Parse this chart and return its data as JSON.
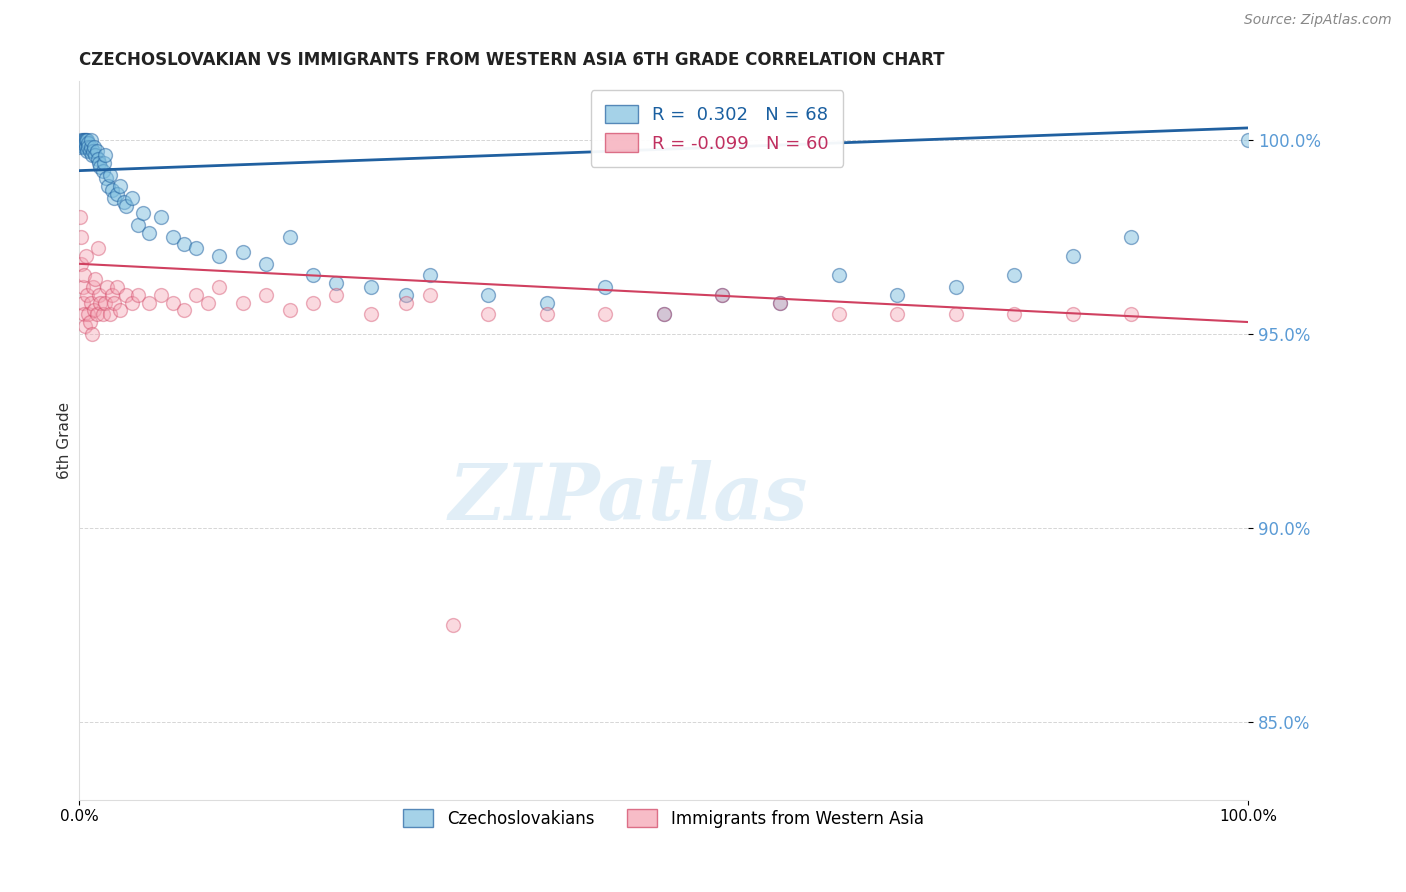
{
  "title": "CZECHOSLOVAKIAN VS IMMIGRANTS FROM WESTERN ASIA 6TH GRADE CORRELATION CHART",
  "source": "Source: ZipAtlas.com",
  "ylabel": "6th Grade",
  "yticks": [
    85.0,
    90.0,
    95.0,
    100.0
  ],
  "xlim": [
    0.0,
    100.0
  ],
  "ylim": [
    83.0,
    101.5
  ],
  "blue_R": 0.302,
  "blue_N": 68,
  "pink_R": -0.099,
  "pink_N": 60,
  "blue_color": "#7fbfdf",
  "pink_color": "#f4a0b0",
  "blue_line_color": "#2060a0",
  "pink_line_color": "#d04060",
  "legend_blue_label": "Czechoslovakians",
  "legend_pink_label": "Immigrants from Western Asia",
  "watermark": "ZIPatlas",
  "blue_x": [
    0.1,
    0.2,
    0.2,
    0.3,
    0.3,
    0.4,
    0.4,
    0.5,
    0.5,
    0.6,
    0.6,
    0.7,
    0.7,
    0.8,
    0.8,
    0.9,
    1.0,
    1.0,
    1.1,
    1.2,
    1.3,
    1.4,
    1.5,
    1.6,
    1.7,
    1.8,
    2.0,
    2.1,
    2.2,
    2.3,
    2.5,
    2.6,
    2.8,
    3.0,
    3.2,
    3.5,
    3.8,
    4.0,
    4.5,
    5.0,
    5.5,
    6.0,
    7.0,
    8.0,
    9.0,
    10.0,
    12.0,
    14.0,
    16.0,
    18.0,
    20.0,
    22.0,
    25.0,
    28.0,
    30.0,
    35.0,
    40.0,
    45.0,
    50.0,
    55.0,
    60.0,
    65.0,
    70.0,
    75.0,
    80.0,
    85.0,
    90.0,
    100.0
  ],
  "blue_y": [
    99.8,
    99.9,
    100.0,
    99.9,
    100.0,
    100.0,
    99.8,
    100.0,
    99.9,
    100.0,
    99.8,
    99.7,
    100.0,
    99.9,
    99.8,
    99.7,
    99.8,
    100.0,
    99.6,
    99.7,
    99.8,
    99.6,
    99.7,
    99.5,
    99.4,
    99.3,
    99.2,
    99.4,
    99.6,
    99.0,
    98.8,
    99.1,
    98.7,
    98.5,
    98.6,
    98.8,
    98.4,
    98.3,
    98.5,
    97.8,
    98.1,
    97.6,
    98.0,
    97.5,
    97.3,
    97.2,
    97.0,
    97.1,
    96.8,
    97.5,
    96.5,
    96.3,
    96.2,
    96.0,
    96.5,
    96.0,
    95.8,
    96.2,
    95.5,
    96.0,
    95.8,
    96.5,
    96.0,
    96.2,
    96.5,
    97.0,
    97.5,
    100.0
  ],
  "pink_x": [
    0.1,
    0.2,
    0.2,
    0.3,
    0.3,
    0.4,
    0.4,
    0.5,
    0.6,
    0.7,
    0.8,
    0.9,
    1.0,
    1.1,
    1.2,
    1.3,
    1.4,
    1.5,
    1.6,
    1.7,
    1.8,
    2.0,
    2.2,
    2.4,
    2.6,
    2.8,
    3.0,
    3.2,
    3.5,
    4.0,
    4.5,
    5.0,
    6.0,
    7.0,
    8.0,
    9.0,
    10.0,
    11.0,
    12.0,
    14.0,
    16.0,
    18.0,
    20.0,
    22.0,
    25.0,
    28.0,
    30.0,
    35.0,
    40.0,
    45.0,
    50.0,
    55.0,
    60.0,
    65.0,
    70.0,
    75.0,
    80.0,
    85.0,
    90.0,
    32.0
  ],
  "pink_y": [
    98.0,
    97.5,
    96.8,
    96.2,
    95.8,
    95.5,
    96.5,
    95.2,
    97.0,
    96.0,
    95.5,
    95.3,
    95.8,
    95.0,
    96.2,
    95.6,
    96.4,
    95.5,
    97.2,
    96.0,
    95.8,
    95.5,
    95.8,
    96.2,
    95.5,
    96.0,
    95.8,
    96.2,
    95.6,
    96.0,
    95.8,
    96.0,
    95.8,
    96.0,
    95.8,
    95.6,
    96.0,
    95.8,
    96.2,
    95.8,
    96.0,
    95.6,
    95.8,
    96.0,
    95.5,
    95.8,
    96.0,
    95.5,
    95.5,
    95.5,
    95.5,
    96.0,
    95.8,
    95.5,
    95.5,
    95.5,
    95.5,
    95.5,
    95.5,
    87.5
  ],
  "blue_trend_x0": 0.0,
  "blue_trend_x1": 100.0,
  "blue_trend_y0": 99.2,
  "blue_trend_y1": 100.3,
  "pink_trend_x0": 0.0,
  "pink_trend_x1": 100.0,
  "pink_trend_y0": 96.8,
  "pink_trend_y1": 95.3
}
